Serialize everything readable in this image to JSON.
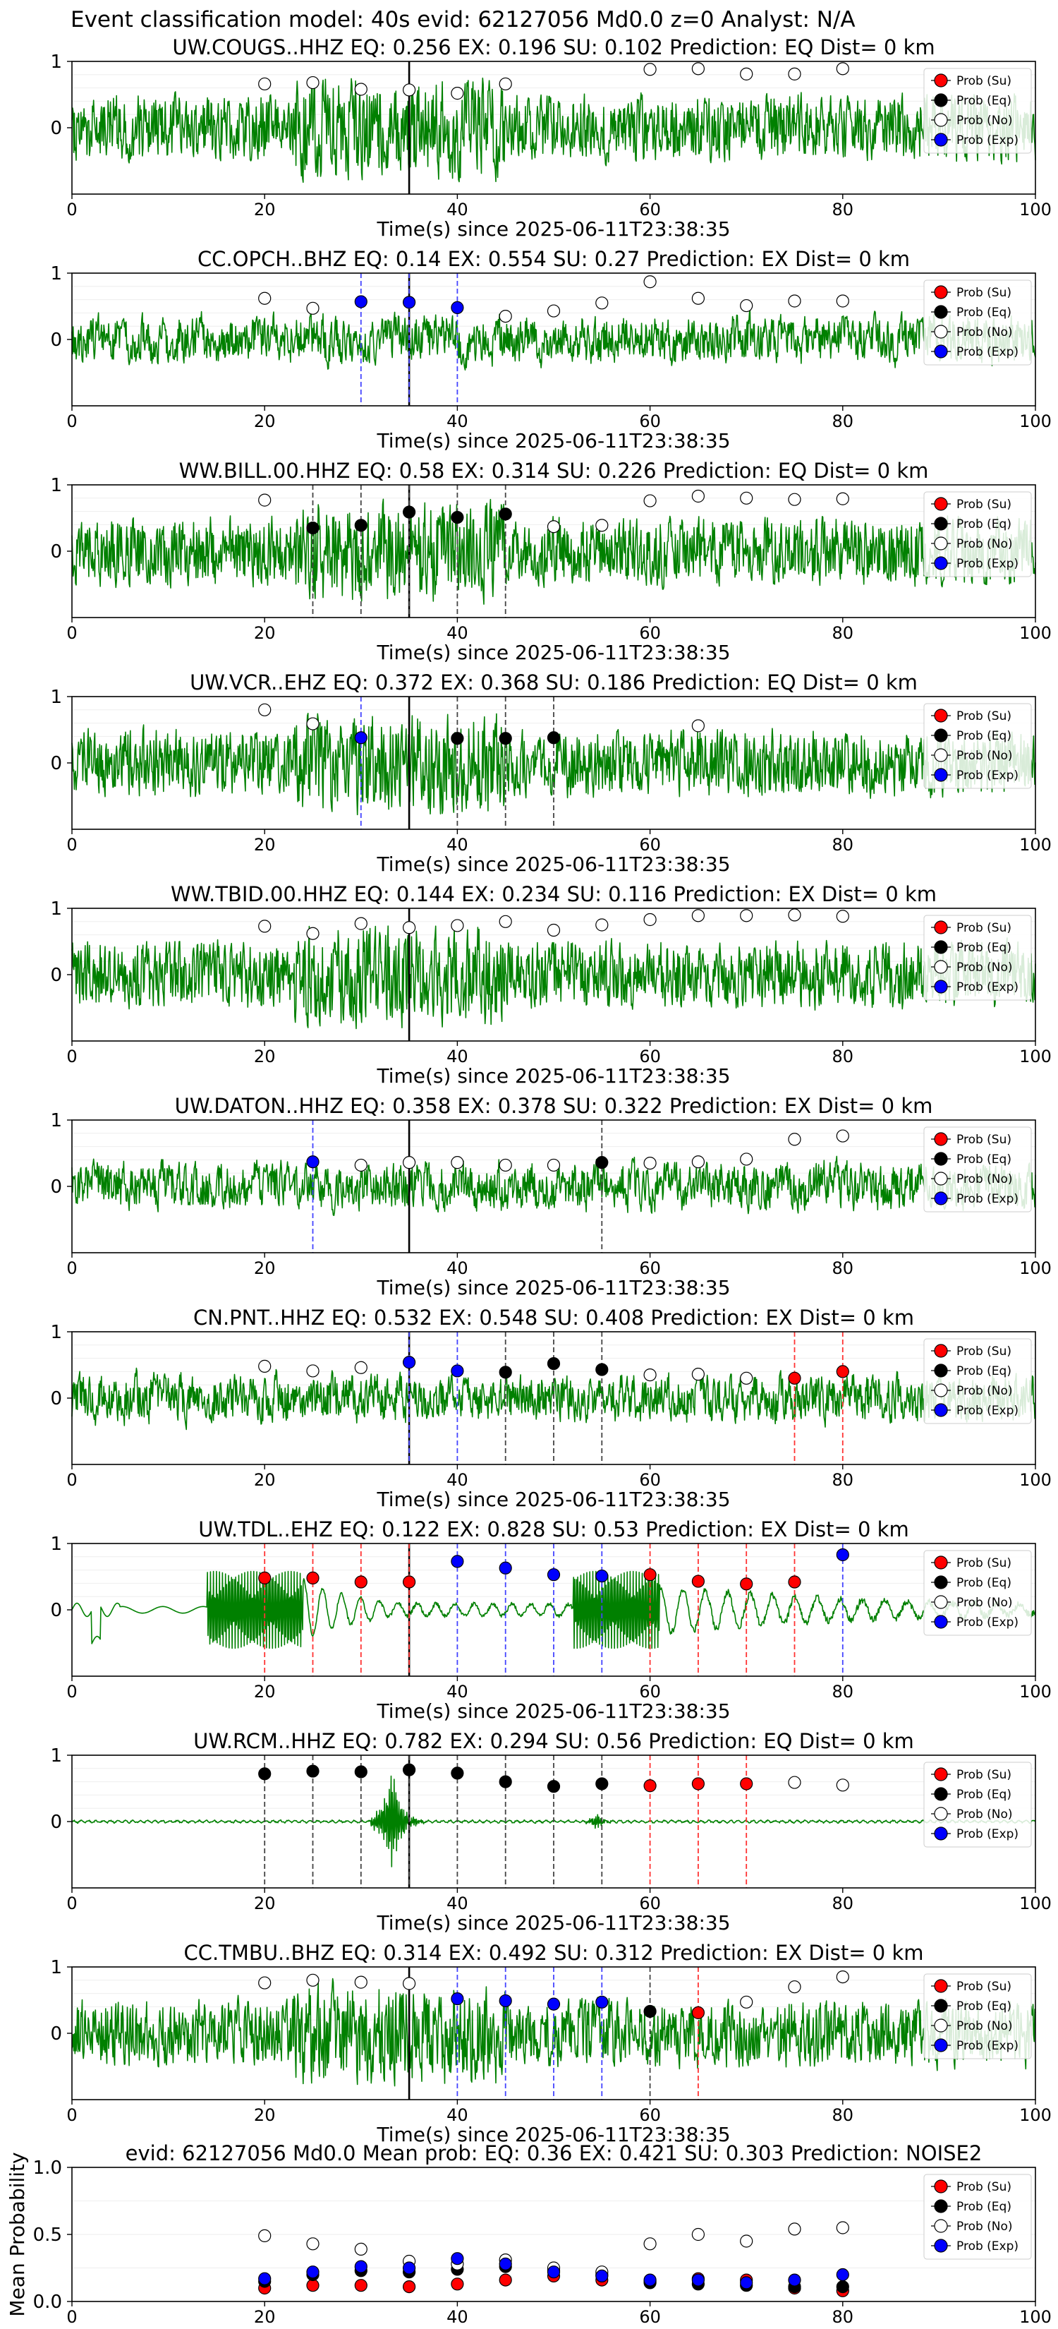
{
  "figure_title": "Event classification model: 40s evid: 62127056 Md0.0 z=0 Analyst: N/A",
  "xlabel": "Time(s) since 2025-06-11T23:38:35",
  "x_ticks": [
    0,
    20,
    40,
    60,
    80,
    100
  ],
  "y_ticks_wave": [
    "1",
    "0"
  ],
  "legend": [
    "Prob (Su)",
    "Prob (Eq)",
    "Prob (No)",
    "Prob (Exp)"
  ],
  "colors": {
    "su": "#ff0000",
    "eq": "#000000",
    "no": "#ffffff",
    "exp": "#0000ff",
    "wave": "#008000"
  },
  "chart_data": [
    {
      "type": "line",
      "title": "UW.COUGS..HHZ   EQ: 0.256  EX: 0.196  SU: 0.102   Prediction: EQ    Dist= 0 km",
      "wave_style": "noisy",
      "xlim": [
        0,
        100
      ],
      "ylim": [
        -1,
        1
      ],
      "pick_time": 35,
      "points": [
        {
          "x": 20,
          "y": 0.66,
          "c": "no"
        },
        {
          "x": 25,
          "y": 0.68,
          "c": "no"
        },
        {
          "x": 30,
          "y": 0.58,
          "c": "no"
        },
        {
          "x": 35,
          "y": 0.57,
          "c": "no"
        },
        {
          "x": 40,
          "y": 0.52,
          "c": "no"
        },
        {
          "x": 45,
          "y": 0.66,
          "c": "no"
        },
        {
          "x": 60,
          "y": 0.88,
          "c": "no"
        },
        {
          "x": 65,
          "y": 0.89,
          "c": "no"
        },
        {
          "x": 70,
          "y": 0.81,
          "c": "no"
        },
        {
          "x": 75,
          "y": 0.81,
          "c": "no"
        },
        {
          "x": 80,
          "y": 0.89,
          "c": "no"
        }
      ]
    },
    {
      "type": "line",
      "title": "CC.OPCH..BHZ   EQ: 0.14  EX: 0.554  SU: 0.27   Prediction: EX    Dist= 0 km",
      "wave_style": "moderate",
      "xlim": [
        0,
        100
      ],
      "ylim": [
        -1,
        1
      ],
      "pick_time": 35,
      "points": [
        {
          "x": 20,
          "y": 0.62,
          "c": "no"
        },
        {
          "x": 25,
          "y": 0.47,
          "c": "no"
        },
        {
          "x": 30,
          "y": 0.57,
          "c": "exp"
        },
        {
          "x": 35,
          "y": 0.56,
          "c": "exp"
        },
        {
          "x": 40,
          "y": 0.48,
          "c": "exp"
        },
        {
          "x": 45,
          "y": 0.35,
          "c": "no"
        },
        {
          "x": 50,
          "y": 0.43,
          "c": "no"
        },
        {
          "x": 55,
          "y": 0.55,
          "c": "no"
        },
        {
          "x": 60,
          "y": 0.87,
          "c": "no"
        },
        {
          "x": 65,
          "y": 0.62,
          "c": "no"
        },
        {
          "x": 70,
          "y": 0.51,
          "c": "no"
        },
        {
          "x": 75,
          "y": 0.58,
          "c": "no"
        },
        {
          "x": 80,
          "y": 0.58,
          "c": "no"
        }
      ]
    },
    {
      "type": "line",
      "title": "WW.BILL.00.HHZ   EQ: 0.58  EX: 0.314  SU: 0.226   Prediction: EQ    Dist= 0 km",
      "wave_style": "noisy",
      "xlim": [
        0,
        100
      ],
      "ylim": [
        -1,
        1
      ],
      "pick_time": 35,
      "points": [
        {
          "x": 20,
          "y": 0.77,
          "c": "no"
        },
        {
          "x": 25,
          "y": 0.35,
          "c": "eq"
        },
        {
          "x": 30,
          "y": 0.39,
          "c": "eq"
        },
        {
          "x": 35,
          "y": 0.59,
          "c": "eq"
        },
        {
          "x": 40,
          "y": 0.51,
          "c": "eq"
        },
        {
          "x": 45,
          "y": 0.56,
          "c": "eq"
        },
        {
          "x": 50,
          "y": 0.37,
          "c": "no"
        },
        {
          "x": 55,
          "y": 0.39,
          "c": "no"
        },
        {
          "x": 60,
          "y": 0.76,
          "c": "no"
        },
        {
          "x": 65,
          "y": 0.83,
          "c": "no"
        },
        {
          "x": 70,
          "y": 0.8,
          "c": "no"
        },
        {
          "x": 75,
          "y": 0.78,
          "c": "no"
        },
        {
          "x": 80,
          "y": 0.79,
          "c": "no"
        }
      ]
    },
    {
      "type": "line",
      "title": "UW.VCR..EHZ   EQ: 0.372  EX: 0.368  SU: 0.186   Prediction: EQ    Dist= 0 km",
      "wave_style": "noisy",
      "xlim": [
        0,
        100
      ],
      "ylim": [
        -1,
        1
      ],
      "pick_time": 35,
      "points": [
        {
          "x": 20,
          "y": 0.8,
          "c": "no"
        },
        {
          "x": 25,
          "y": 0.59,
          "c": "no"
        },
        {
          "x": 30,
          "y": 0.38,
          "c": "exp"
        },
        {
          "x": 40,
          "y": 0.37,
          "c": "eq"
        },
        {
          "x": 45,
          "y": 0.37,
          "c": "eq"
        },
        {
          "x": 50,
          "y": 0.38,
          "c": "eq"
        },
        {
          "x": 65,
          "y": 0.56,
          "c": "no"
        }
      ]
    },
    {
      "type": "line",
      "title": "WW.TBID.00.HHZ   EQ: 0.144  EX: 0.234  SU: 0.116   Prediction: EX    Dist= 0 km",
      "wave_style": "noisy",
      "xlim": [
        0,
        100
      ],
      "ylim": [
        -1,
        1
      ],
      "pick_time": 35,
      "points": [
        {
          "x": 20,
          "y": 0.73,
          "c": "no"
        },
        {
          "x": 25,
          "y": 0.62,
          "c": "no"
        },
        {
          "x": 30,
          "y": 0.77,
          "c": "no"
        },
        {
          "x": 35,
          "y": 0.71,
          "c": "no"
        },
        {
          "x": 40,
          "y": 0.74,
          "c": "no"
        },
        {
          "x": 45,
          "y": 0.8,
          "c": "no"
        },
        {
          "x": 50,
          "y": 0.67,
          "c": "no"
        },
        {
          "x": 55,
          "y": 0.75,
          "c": "no"
        },
        {
          "x": 60,
          "y": 0.83,
          "c": "no"
        },
        {
          "x": 65,
          "y": 0.89,
          "c": "no"
        },
        {
          "x": 70,
          "y": 0.89,
          "c": "no"
        },
        {
          "x": 75,
          "y": 0.9,
          "c": "no"
        },
        {
          "x": 80,
          "y": 0.88,
          "c": "no"
        }
      ]
    },
    {
      "type": "line",
      "title": "UW.DATON..HHZ   EQ: 0.358  EX: 0.378  SU: 0.322   Prediction: EX    Dist= 0 km",
      "wave_style": "moderate",
      "xlim": [
        0,
        100
      ],
      "ylim": [
        -1,
        1
      ],
      "pick_time": 35,
      "points": [
        {
          "x": 25,
          "y": 0.37,
          "c": "exp"
        },
        {
          "x": 30,
          "y": 0.32,
          "c": "no"
        },
        {
          "x": 35,
          "y": 0.36,
          "c": "no"
        },
        {
          "x": 40,
          "y": 0.36,
          "c": "no"
        },
        {
          "x": 45,
          "y": 0.32,
          "c": "no"
        },
        {
          "x": 50,
          "y": 0.32,
          "c": "no"
        },
        {
          "x": 55,
          "y": 0.36,
          "c": "eq"
        },
        {
          "x": 60,
          "y": 0.35,
          "c": "no"
        },
        {
          "x": 65,
          "y": 0.37,
          "c": "no"
        },
        {
          "x": 70,
          "y": 0.41,
          "c": "no"
        },
        {
          "x": 75,
          "y": 0.71,
          "c": "no"
        },
        {
          "x": 80,
          "y": 0.76,
          "c": "no"
        }
      ]
    },
    {
      "type": "line",
      "title": "CN.PNT..HHZ   EQ: 0.532  EX: 0.548  SU: 0.408   Prediction: EX    Dist= 0 km",
      "wave_style": "moderate",
      "xlim": [
        0,
        100
      ],
      "ylim": [
        -1,
        1
      ],
      "pick_time": 35,
      "points": [
        {
          "x": 20,
          "y": 0.48,
          "c": "no"
        },
        {
          "x": 25,
          "y": 0.41,
          "c": "no"
        },
        {
          "x": 30,
          "y": 0.46,
          "c": "no"
        },
        {
          "x": 35,
          "y": 0.54,
          "c": "exp"
        },
        {
          "x": 40,
          "y": 0.41,
          "c": "exp"
        },
        {
          "x": 45,
          "y": 0.39,
          "c": "eq"
        },
        {
          "x": 50,
          "y": 0.52,
          "c": "eq"
        },
        {
          "x": 55,
          "y": 0.43,
          "c": "eq"
        },
        {
          "x": 60,
          "y": 0.35,
          "c": "no"
        },
        {
          "x": 65,
          "y": 0.36,
          "c": "no"
        },
        {
          "x": 70,
          "y": 0.3,
          "c": "no"
        },
        {
          "x": 75,
          "y": 0.3,
          "c": "su"
        },
        {
          "x": 80,
          "y": 0.4,
          "c": "su"
        }
      ]
    },
    {
      "type": "line",
      "title": "UW.TDL..EHZ   EQ: 0.122  EX: 0.828  SU: 0.53   Prediction: EX    Dist= 0 km",
      "wave_style": "burst",
      "xlim": [
        0,
        100
      ],
      "ylim": [
        -1,
        1
      ],
      "pick_time": 35,
      "points": [
        {
          "x": 20,
          "y": 0.48,
          "c": "su"
        },
        {
          "x": 25,
          "y": 0.48,
          "c": "su"
        },
        {
          "x": 30,
          "y": 0.42,
          "c": "su"
        },
        {
          "x": 35,
          "y": 0.42,
          "c": "su"
        },
        {
          "x": 40,
          "y": 0.73,
          "c": "exp"
        },
        {
          "x": 45,
          "y": 0.63,
          "c": "exp"
        },
        {
          "x": 50,
          "y": 0.53,
          "c": "exp"
        },
        {
          "x": 55,
          "y": 0.51,
          "c": "exp"
        },
        {
          "x": 60,
          "y": 0.53,
          "c": "su"
        },
        {
          "x": 65,
          "y": 0.43,
          "c": "su"
        },
        {
          "x": 70,
          "y": 0.39,
          "c": "su"
        },
        {
          "x": 75,
          "y": 0.42,
          "c": "su"
        },
        {
          "x": 80,
          "y": 0.83,
          "c": "exp"
        }
      ]
    },
    {
      "type": "line",
      "title": "UW.RCM..HHZ   EQ: 0.782  EX: 0.294  SU: 0.56   Prediction: EQ    Dist= 0 km",
      "wave_style": "quiet",
      "xlim": [
        0,
        100
      ],
      "ylim": [
        -1,
        1
      ],
      "pick_time": 35,
      "points": [
        {
          "x": 20,
          "y": 0.72,
          "c": "eq"
        },
        {
          "x": 25,
          "y": 0.76,
          "c": "eq"
        },
        {
          "x": 30,
          "y": 0.75,
          "c": "eq"
        },
        {
          "x": 35,
          "y": 0.78,
          "c": "eq"
        },
        {
          "x": 40,
          "y": 0.73,
          "c": "eq"
        },
        {
          "x": 45,
          "y": 0.6,
          "c": "eq"
        },
        {
          "x": 50,
          "y": 0.53,
          "c": "eq"
        },
        {
          "x": 55,
          "y": 0.57,
          "c": "eq"
        },
        {
          "x": 60,
          "y": 0.54,
          "c": "su"
        },
        {
          "x": 65,
          "y": 0.57,
          "c": "su"
        },
        {
          "x": 70,
          "y": 0.57,
          "c": "su"
        },
        {
          "x": 75,
          "y": 0.59,
          "c": "no"
        },
        {
          "x": 80,
          "y": 0.55,
          "c": "no"
        }
      ]
    },
    {
      "type": "line",
      "title": "CC.TMBU..BHZ   EQ: 0.314  EX: 0.492  SU: 0.312   Prediction: EX    Dist= 0 km",
      "wave_style": "noisy",
      "xlim": [
        0,
        100
      ],
      "ylim": [
        -1,
        1
      ],
      "pick_time": 35,
      "points": [
        {
          "x": 20,
          "y": 0.76,
          "c": "no"
        },
        {
          "x": 25,
          "y": 0.8,
          "c": "no"
        },
        {
          "x": 30,
          "y": 0.77,
          "c": "no"
        },
        {
          "x": 35,
          "y": 0.75,
          "c": "no"
        },
        {
          "x": 40,
          "y": 0.52,
          "c": "exp"
        },
        {
          "x": 45,
          "y": 0.49,
          "c": "exp"
        },
        {
          "x": 50,
          "y": 0.44,
          "c": "exp"
        },
        {
          "x": 55,
          "y": 0.47,
          "c": "exp"
        },
        {
          "x": 60,
          "y": 0.33,
          "c": "eq"
        },
        {
          "x": 65,
          "y": 0.31,
          "c": "su"
        },
        {
          "x": 70,
          "y": 0.47,
          "c": "no"
        },
        {
          "x": 75,
          "y": 0.7,
          "c": "no"
        },
        {
          "x": 80,
          "y": 0.85,
          "c": "no"
        }
      ]
    },
    {
      "type": "scatter",
      "title": "evid: 62127056  Md0.0   Mean prob:   EQ: 0.36  EX: 0.421  SU: 0.303   Prediction: NOISE2",
      "ylabel": "Mean Probability",
      "xlim": [
        0,
        100
      ],
      "ylim": [
        0,
        1
      ],
      "y_ticks": [
        "1.0",
        "0.5",
        "0.0"
      ],
      "x": [
        20,
        25,
        30,
        35,
        40,
        45,
        50,
        55,
        60,
        65,
        70,
        75,
        80
      ],
      "series": [
        {
          "name": "Prob (Su)",
          "values": [
            0.1,
            0.12,
            0.12,
            0.11,
            0.13,
            0.16,
            0.19,
            0.16,
            0.15,
            0.17,
            0.16,
            0.1,
            0.08
          ]
        },
        {
          "name": "Prob (Eq)",
          "values": [
            0.15,
            0.2,
            0.23,
            0.22,
            0.24,
            0.26,
            0.23,
            0.2,
            0.14,
            0.13,
            0.12,
            0.11,
            0.11
          ]
        },
        {
          "name": "Prob (No)",
          "values": [
            0.49,
            0.43,
            0.39,
            0.3,
            0.28,
            0.31,
            0.25,
            0.22,
            0.43,
            0.5,
            0.45,
            0.54,
            0.55
          ]
        },
        {
          "name": "Prob (Exp)",
          "values": [
            0.17,
            0.22,
            0.26,
            0.25,
            0.32,
            0.28,
            0.22,
            0.19,
            0.16,
            0.16,
            0.14,
            0.16,
            0.2
          ]
        }
      ]
    }
  ]
}
